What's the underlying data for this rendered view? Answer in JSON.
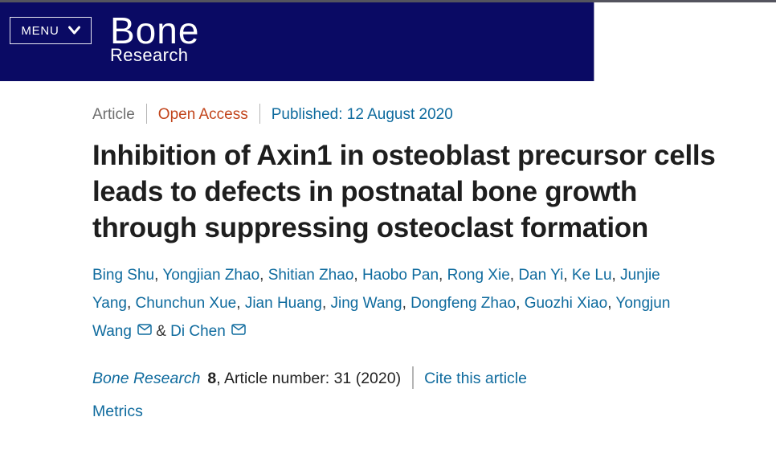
{
  "header": {
    "menu_label": "MENU",
    "journal_name_line1": "Bone",
    "journal_name_line2": "Research"
  },
  "meta": {
    "article_type": "Article",
    "access": "Open Access",
    "published": "Published: 12 August 2020"
  },
  "title": "Inhibition of Axin1 in osteoblast precursor cells leads to defects in postnatal bone growth through suppressing osteoclast formation",
  "authors": [
    {
      "name": "Bing Shu",
      "email": false
    },
    {
      "name": "Yongjian Zhao",
      "email": false
    },
    {
      "name": "Shitian Zhao",
      "email": false
    },
    {
      "name": "Haobo Pan",
      "email": false
    },
    {
      "name": "Rong Xie",
      "email": false
    },
    {
      "name": "Dan Yi",
      "email": false
    },
    {
      "name": "Ke Lu",
      "email": false
    },
    {
      "name": "Junjie Yang",
      "email": false
    },
    {
      "name": "Chunchun Xue",
      "email": false
    },
    {
      "name": "Jian Huang",
      "email": false
    },
    {
      "name": "Jing Wang",
      "email": false
    },
    {
      "name": "Dongfeng Zhao",
      "email": false
    },
    {
      "name": "Guozhi Xiao",
      "email": false
    },
    {
      "name": "Yongjun Wang",
      "email": true
    },
    {
      "name": "Di Chen",
      "email": true
    }
  ],
  "author_separator": ", ",
  "author_last_separator": " & ",
  "citation": {
    "journal": "Bone Research",
    "volume": "8",
    "article_number_text": ", Article number: 31 (2020)",
    "cite_link": "Cite this article",
    "metrics_link": "Metrics"
  },
  "icons": {
    "menu_button": "chevron-down-icon",
    "author_email": "envelope-icon"
  },
  "colors": {
    "header_navy": "#0a0a64",
    "top_strip": "#54545e",
    "link_blue": "#0f6b9e",
    "open_access_orange": "#c2451c",
    "meta_gray": "#6e6e6e",
    "title_dark": "#1e1e1e"
  }
}
